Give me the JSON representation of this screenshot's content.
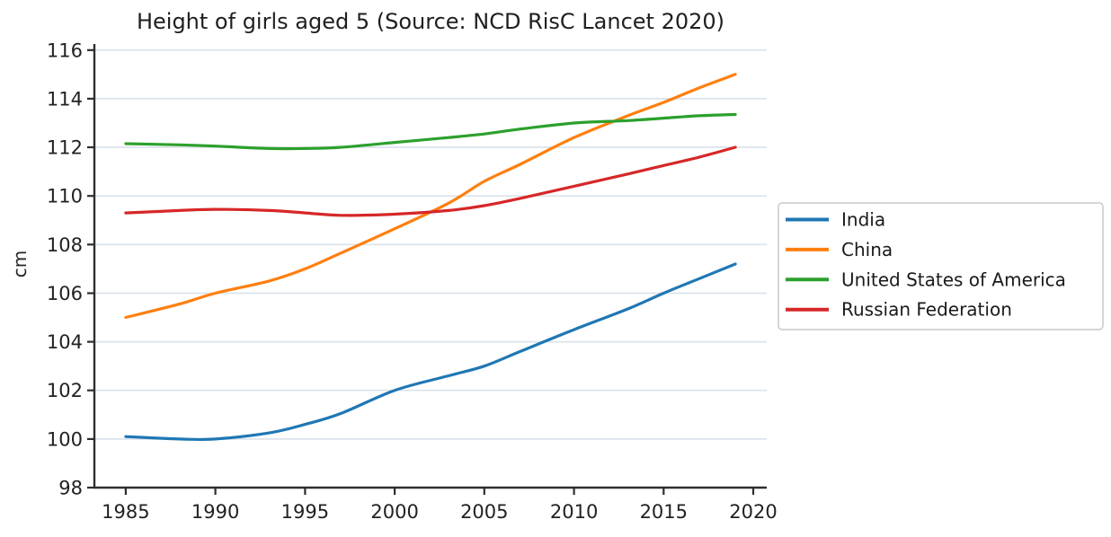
{
  "chart_data": {
    "type": "line",
    "title": "Height of girls aged 5 (Source: NCD RisC Lancet 2020)",
    "xlabel": "",
    "ylabel": "cm",
    "x": [
      1985,
      1988,
      1990,
      1993,
      1995,
      1997,
      2000,
      2003,
      2005,
      2007,
      2010,
      2013,
      2015,
      2017,
      2019
    ],
    "series": [
      {
        "name": "India",
        "color": "#1f77b4",
        "values": [
          100.1,
          100.0,
          100.0,
          100.25,
          100.6,
          101.05,
          102.0,
          102.6,
          103.0,
          103.6,
          104.5,
          105.35,
          106.0,
          106.6,
          107.2
        ]
      },
      {
        "name": "China",
        "color": "#ff7f0e",
        "values": [
          105.0,
          105.55,
          106.0,
          106.5,
          107.0,
          107.65,
          108.65,
          109.7,
          110.6,
          111.3,
          112.4,
          113.3,
          113.85,
          114.45,
          115.0
        ]
      },
      {
        "name": "United States of America",
        "color": "#2ca02c",
        "values": [
          112.15,
          112.1,
          112.05,
          111.95,
          111.95,
          112.0,
          112.2,
          112.4,
          112.55,
          112.75,
          113.0,
          113.1,
          113.2,
          113.3,
          113.35
        ]
      },
      {
        "name": "Russian Federation",
        "color": "#d62728",
        "values": [
          109.3,
          109.4,
          109.45,
          109.4,
          109.3,
          109.2,
          109.25,
          109.4,
          109.6,
          109.9,
          110.4,
          110.9,
          111.25,
          111.6,
          112.0
        ]
      }
    ],
    "xticks": [
      1985,
      1990,
      1995,
      2000,
      2005,
      2010,
      2015,
      2020
    ],
    "yticks": [
      98,
      100,
      102,
      104,
      106,
      108,
      110,
      112,
      114,
      116
    ],
    "xlim": [
      1983.25,
      2020.75
    ],
    "ylim": [
      98,
      116.25
    ],
    "grid": "horizontal",
    "legend_position": "right-outside"
  },
  "colors": {
    "grid": "#dbe3ec",
    "axis": "#2e2e2e",
    "tick_text": "#222222",
    "legend_border": "#c9c9c9",
    "legend_bg": "#ffffff",
    "background": "#ffffff"
  }
}
